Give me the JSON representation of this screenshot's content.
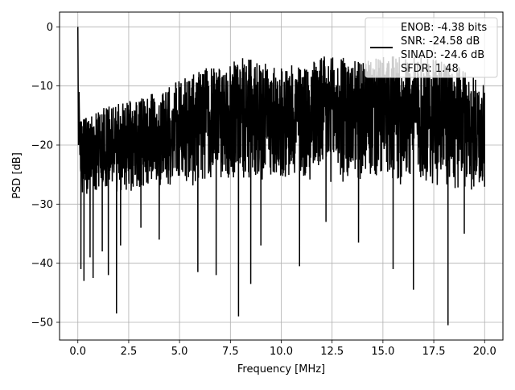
{
  "chart_data": {
    "type": "line",
    "title": "",
    "xlabel": "Frequency [MHz]",
    "ylabel": "PSD [dB]",
    "xlim": [
      -0.9,
      20.9
    ],
    "ylim": [
      -53,
      2.5
    ],
    "xticks": [
      0.0,
      2.5,
      5.0,
      7.5,
      10.0,
      12.5,
      15.0,
      17.5,
      20.0
    ],
    "xtick_labels": [
      "0.0",
      "2.5",
      "5.0",
      "7.5",
      "10.0",
      "12.5",
      "15.0",
      "17.5",
      "20.0"
    ],
    "yticks": [
      0,
      -10,
      -20,
      -30,
      -40,
      -50
    ],
    "ytick_labels": [
      "0",
      "−10",
      "−20",
      "−30",
      "−40",
      "−50"
    ],
    "grid": true,
    "legend_position": "top-right",
    "legend_lines": [
      "ENOB: -4.38 bits",
      "SNR: -24.58 dB",
      "SINAD: -24.6 dB",
      "SFDR: 1.48"
    ],
    "series": [
      {
        "color": "#000000",
        "peak": {
          "x": 0.0,
          "y": 0.0
        },
        "upper_envelope": {
          "x": [
            0.1,
            1.0,
            2.0,
            3.0,
            4.0,
            5.0,
            6.0,
            7.0,
            8.0,
            9.0,
            10.0,
            11.0,
            12.0,
            13.0,
            14.0,
            15.0,
            16.0,
            17.0,
            18.0,
            19.0,
            20.0
          ],
          "y": [
            -16,
            -14,
            -13,
            -12,
            -11,
            -9,
            -7,
            -7,
            -5,
            -6,
            -7,
            -6,
            -5,
            -5,
            -6,
            -5,
            -5,
            -5,
            -6,
            -7,
            -10
          ]
        },
        "lower_envelope": {
          "x": [
            0.1,
            1.0,
            2.0,
            3.0,
            4.0,
            5.0,
            6.0,
            7.0,
            8.0,
            9.0,
            10.0,
            11.0,
            12.0,
            13.0,
            14.0,
            15.0,
            16.0,
            17.0,
            18.0,
            19.0,
            20.0
          ],
          "y": [
            -29,
            -28,
            -28,
            -28,
            -27,
            -27,
            -27,
            -26,
            -26,
            -26,
            -26,
            -26,
            -26,
            -27,
            -26,
            -27,
            -27,
            -27,
            -27,
            -28,
            -28
          ]
        },
        "dips": [
          {
            "x": 0.15,
            "y": -41
          },
          {
            "x": 0.3,
            "y": -43
          },
          {
            "x": 0.6,
            "y": -39
          },
          {
            "x": 0.75,
            "y": -42.5
          },
          {
            "x": 1.2,
            "y": -38
          },
          {
            "x": 1.5,
            "y": -42
          },
          {
            "x": 1.9,
            "y": -48.5
          },
          {
            "x": 2.1,
            "y": -37
          },
          {
            "x": 3.1,
            "y": -34
          },
          {
            "x": 4.0,
            "y": -36
          },
          {
            "x": 5.9,
            "y": -41.5
          },
          {
            "x": 6.8,
            "y": -42
          },
          {
            "x": 7.9,
            "y": -49
          },
          {
            "x": 8.5,
            "y": -43.5
          },
          {
            "x": 9.0,
            "y": -37
          },
          {
            "x": 10.9,
            "y": -40.5
          },
          {
            "x": 12.2,
            "y": -33
          },
          {
            "x": 13.8,
            "y": -36.5
          },
          {
            "x": 15.5,
            "y": -41
          },
          {
            "x": 16.5,
            "y": -44.5
          },
          {
            "x": 18.2,
            "y": -50.5
          },
          {
            "x": 19.0,
            "y": -35
          }
        ]
      }
    ]
  }
}
